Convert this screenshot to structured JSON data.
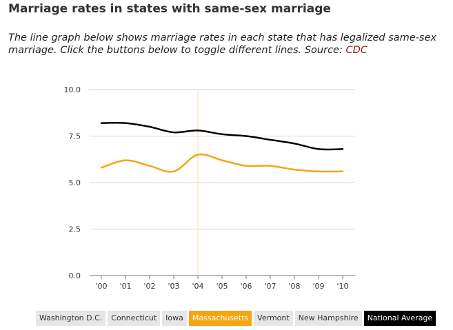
{
  "header": {
    "title": "Marriage rates in states with same-sex marriage",
    "description": "The line graph below shows marriage rates in each state that has legalized same-sex marriage. Click the buttons below to toggle different lines. Source: ",
    "source_link": "CDC"
  },
  "buttons": [
    {
      "label": "Washington D.C.",
      "active": false
    },
    {
      "label": "Connecticut",
      "active": false
    },
    {
      "label": "Iowa",
      "active": false
    },
    {
      "label": "Massachusetts",
      "active": true,
      "color": "#f5a512"
    },
    {
      "label": "Vermont",
      "active": false
    },
    {
      "label": "New Hampshire",
      "active": false
    },
    {
      "label": "National Average",
      "active": true,
      "color": "#000000"
    }
  ],
  "chart_data": {
    "type": "line",
    "x": [
      "'00",
      "'01",
      "'02",
      "'03",
      "'04",
      "'05",
      "'06",
      "'07",
      "'08",
      "'09",
      "'10"
    ],
    "ylim": [
      0,
      10
    ],
    "yticks": [
      "0.0",
      "2.5",
      "5.0",
      "7.5",
      "10.0"
    ],
    "ytick_values": [
      0,
      2.5,
      5,
      7.5,
      10
    ],
    "highlight_x": "'04",
    "grid": true,
    "series": [
      {
        "name": "Massachusetts",
        "color": "#f5a512",
        "values": [
          5.8,
          6.2,
          5.9,
          5.6,
          6.5,
          6.2,
          5.9,
          5.9,
          5.7,
          5.6,
          5.6
        ]
      },
      {
        "name": "National Average",
        "color": "#000000",
        "values": [
          8.2,
          8.2,
          8.0,
          7.7,
          7.8,
          7.6,
          7.5,
          7.3,
          7.1,
          6.8,
          6.8
        ]
      }
    ]
  }
}
